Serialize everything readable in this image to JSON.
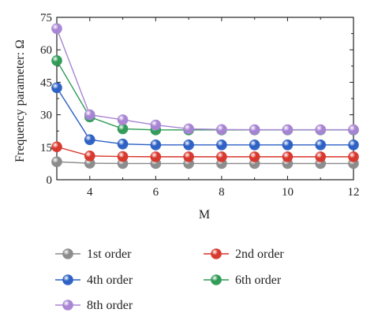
{
  "chart_data": {
    "type": "line",
    "xlabel": "M",
    "ylabel": "Frequency parameter: Ω",
    "xlim": [
      3,
      12
    ],
    "ylim": [
      0,
      75
    ],
    "xticks": [
      4,
      6,
      8,
      10,
      12
    ],
    "yticks": [
      0,
      15,
      30,
      45,
      60,
      75
    ],
    "x": [
      3,
      4,
      5,
      6,
      7,
      8,
      9,
      10,
      11,
      12
    ],
    "grid": false,
    "legend_position": "bottom",
    "series": [
      {
        "name": "1st order",
        "color": "#8a8a8a",
        "values": [
          8.3,
          7.6,
          7.5,
          7.5,
          7.5,
          7.5,
          7.5,
          7.5,
          7.5,
          7.5
        ]
      },
      {
        "name": "2nd order",
        "color": "#d8362b",
        "values": [
          15.2,
          11.0,
          10.7,
          10.6,
          10.6,
          10.6,
          10.6,
          10.6,
          10.6,
          10.6
        ]
      },
      {
        "name": "4th order",
        "color": "#2b5fc4",
        "values": [
          42.5,
          18.5,
          16.5,
          16.1,
          16.1,
          16.1,
          16.1,
          16.1,
          16.1,
          16.1
        ]
      },
      {
        "name": "6th order",
        "color": "#2e9a55",
        "values": [
          55.0,
          29.0,
          23.5,
          23.0,
          23.0,
          23.0,
          23.0,
          23.0,
          23.0,
          23.0
        ]
      },
      {
        "name": "8th order",
        "color": "#a884d4",
        "values": [
          69.8,
          30.0,
          27.7,
          25.3,
          23.5,
          23.2,
          23.1,
          23.1,
          23.1,
          23.1
        ]
      }
    ]
  }
}
